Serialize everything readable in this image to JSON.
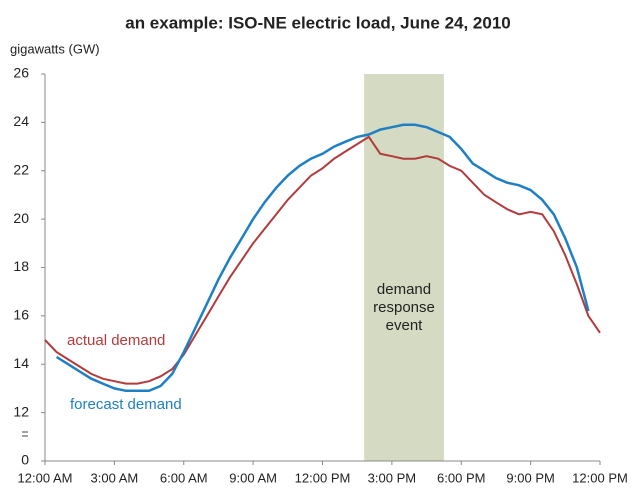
{
  "chart_data": {
    "type": "line",
    "title": "an example: ISO-NE electric load, June 24, 2010",
    "y_label": "gigawatts (GW)",
    "x": [
      0,
      0.5,
      1,
      1.5,
      2,
      2.5,
      3,
      3.5,
      4,
      4.5,
      5,
      5.5,
      6,
      6.5,
      7,
      7.5,
      8,
      8.5,
      9,
      9.5,
      10,
      10.5,
      11,
      11.5,
      12,
      12.5,
      13,
      13.5,
      14,
      14.5,
      15,
      15.5,
      16,
      16.5,
      17,
      17.5,
      18,
      18.5,
      19,
      19.5,
      20,
      20.5,
      21,
      21.5,
      22,
      22.5,
      23,
      23.5,
      24
    ],
    "series": [
      {
        "name": "actual demand",
        "color": "#b23b3b",
        "values": [
          15.0,
          14.5,
          14.2,
          13.9,
          13.6,
          13.4,
          13.3,
          13.2,
          13.2,
          13.3,
          13.5,
          13.8,
          14.4,
          15.2,
          16.0,
          16.8,
          17.6,
          18.3,
          19.0,
          19.6,
          20.2,
          20.8,
          21.3,
          21.8,
          22.1,
          22.5,
          22.8,
          23.1,
          23.4,
          22.7,
          22.6,
          22.5,
          22.5,
          22.6,
          22.5,
          22.2,
          22.0,
          21.5,
          21.0,
          20.7,
          20.4,
          20.2,
          20.3,
          20.2,
          19.5,
          18.5,
          17.3,
          16.0,
          15.3
        ]
      },
      {
        "name": "forecast demand",
        "color": "#1f7fc4",
        "values": [
          null,
          14.3,
          14.0,
          13.7,
          13.4,
          13.2,
          13.0,
          12.9,
          12.9,
          12.9,
          13.1,
          13.6,
          14.5,
          15.5,
          16.5,
          17.5,
          18.4,
          19.2,
          20.0,
          20.7,
          21.3,
          21.8,
          22.2,
          22.5,
          22.7,
          23.0,
          23.2,
          23.4,
          23.5,
          23.7,
          23.8,
          23.9,
          23.9,
          23.8,
          23.6,
          23.4,
          22.9,
          22.3,
          22.0,
          21.7,
          21.5,
          21.4,
          21.2,
          20.8,
          20.2,
          19.2,
          18.0,
          16.2,
          null
        ]
      }
    ],
    "xlim": [
      0,
      24
    ],
    "xticks": [
      {
        "value": 0,
        "label": "12:00 AM"
      },
      {
        "value": 3,
        "label": "3:00 AM"
      },
      {
        "value": 6,
        "label": "6:00 AM"
      },
      {
        "value": 9,
        "label": "9:00 AM"
      },
      {
        "value": 12,
        "label": "12:00 PM"
      },
      {
        "value": 15,
        "label": "3:00 PM"
      },
      {
        "value": 18,
        "label": "6:00 PM"
      },
      {
        "value": 21,
        "label": "9:00 PM"
      },
      {
        "value": 24,
        "label": "12:00 PM"
      }
    ],
    "ylim": [
      0,
      26
    ],
    "yticks": [
      0,
      12,
      14,
      16,
      18,
      20,
      22,
      24,
      26
    ],
    "y_break": [
      0,
      12
    ],
    "shaded_region": {
      "x": [
        13.8,
        17.25
      ],
      "color": "#d5dbc2",
      "label_lines": [
        "demand",
        "response",
        "event"
      ]
    }
  }
}
